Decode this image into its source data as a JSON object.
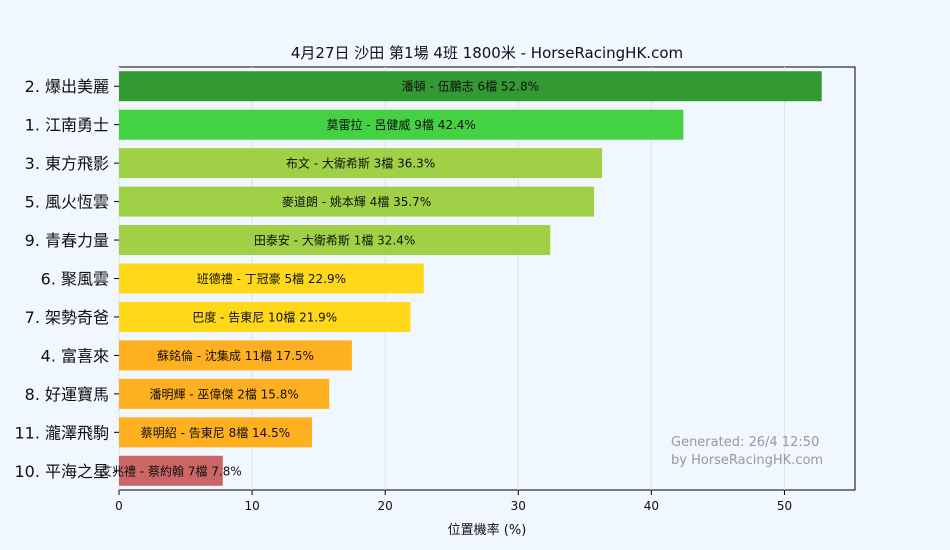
{
  "chart_data": {
    "type": "bar",
    "orientation": "horizontal",
    "title": "4月27日  沙田  第1場  4班  1800米 - HorseRacingHK.com",
    "xlabel": "位置機率 (%)",
    "ylabel": "",
    "xlim": [
      0,
      55.3
    ],
    "xticks": [
      0,
      10,
      20,
      30,
      40,
      50
    ],
    "grid": true,
    "categories": [
      "2. 爆出美麗",
      "1. 江南勇士",
      "3. 東方飛影",
      "5. 風火恆雲",
      "9. 青春力量",
      "6. 聚風雲",
      "7. 架勢奇爸",
      "4. 富喜來",
      "8. 好運寶馬",
      "11. 瀧澤飛駒",
      "10. 平海之星"
    ],
    "values": [
      52.8,
      42.4,
      36.3,
      35.7,
      32.4,
      22.9,
      21.9,
      17.5,
      15.8,
      14.5,
      7.8
    ],
    "bar_labels": [
      "潘頓 - 伍鵬志 6檔  52.8%",
      "莫雷拉 - 呂健威 9檔  42.4%",
      "布文 - 大衛希斯 3檔  36.3%",
      "麥道朗 - 姚本輝 4檔  35.7%",
      "田泰安 - 大衛希斯 1檔  32.4%",
      "班德禮 - 丁冠豪 5檔  22.9%",
      "巴度 - 告東尼 10檔  21.9%",
      "蘇銘倫 - 沈集成 11檔  17.5%",
      "潘明輝 - 巫偉傑 2檔  15.8%",
      "蔡明紹 - 告東尼 8檔  14.5%",
      "艾兆禮 - 蔡約翰 7檔  7.8%"
    ],
    "colors": [
      "#339933",
      "#44d144",
      "#a0d046",
      "#a0d046",
      "#a0d046",
      "#ffd81a",
      "#ffd81a",
      "#ffb020",
      "#ffb020",
      "#ffb020",
      "#cc6666"
    ],
    "watermark": [
      "Generated: 26/4 12:50",
      "by HorseRacingHK.com"
    ]
  }
}
